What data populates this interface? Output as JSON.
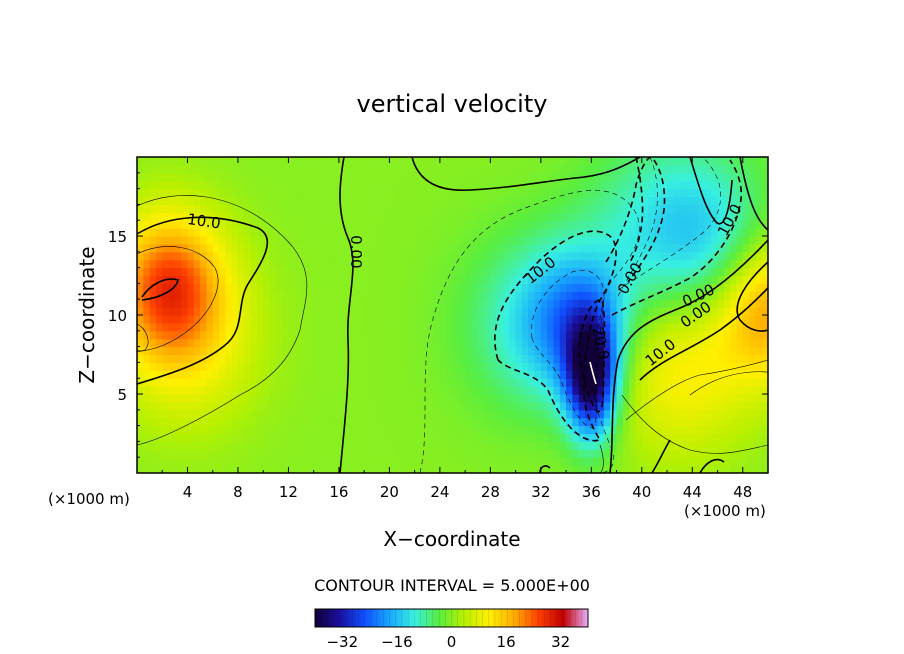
{
  "chart_data": {
    "type": "heatmap",
    "title": "vertical velocity",
    "xlabel": "X−coordinate",
    "ylabel": "Z−coordinate",
    "x_unit_left": "(×1000 m)",
    "x_unit_right": "(×1000 m)",
    "xlim": [
      0,
      50
    ],
    "ylim": [
      0,
      20
    ],
    "x_ticks": [
      4,
      8,
      12,
      16,
      20,
      24,
      28,
      32,
      36,
      40,
      44,
      48
    ],
    "y_ticks": [
      5,
      10,
      15
    ],
    "contour_interval_text": "CONTOUR INTERVAL = 5.000E+00",
    "colorbar": {
      "range": [
        -40,
        40
      ],
      "ticks": [
        -32,
        -16,
        0,
        16,
        32
      ],
      "colors": [
        "#12003a",
        "#1a10a0",
        "#1050ff",
        "#18a8ff",
        "#38f0e0",
        "#58ee40",
        "#b8f000",
        "#fff000",
        "#ffb000",
        "#ff4000",
        "#c00000",
        "#e8b0ff"
      ]
    },
    "contour_labels": [
      {
        "text": "10.0",
        "x": 5.3,
        "z": 15.9,
        "angle": 8
      },
      {
        "text": "0.00",
        "x": 17.3,
        "z": 14.0,
        "angle": 90
      },
      {
        "text": "10.0",
        "x": 32.0,
        "z": 12.8,
        "angle": -38
      },
      {
        "text": "20.0",
        "x": 36.7,
        "z": 8.2,
        "angle": 78
      },
      {
        "text": "0.00",
        "x": 39.1,
        "z": 12.3,
        "angle": -60
      },
      {
        "text": "0.00",
        "x": 44.5,
        "z": 11.2,
        "angle": -25
      },
      {
        "text": "10.0",
        "x": 47.0,
        "z": 16.0,
        "angle": -62
      },
      {
        "text": "0.00",
        "x": 44.3,
        "z": 10.0,
        "angle": -35
      },
      {
        "text": "10.0",
        "x": 41.5,
        "z": 7.6,
        "angle": -38
      }
    ],
    "features": [
      {
        "x": 2.5,
        "z": 12.0,
        "value": 22
      },
      {
        "x": 4.0,
        "z": 8.5,
        "value": 10
      },
      {
        "x": 50.0,
        "z": 10.5,
        "value": 20
      },
      {
        "x": 43.0,
        "z": 7.0,
        "value": 12
      },
      {
        "x": 36.0,
        "z": 6.0,
        "value": -36
      },
      {
        "x": 35.0,
        "z": 9.5,
        "value": -18
      },
      {
        "x": 31.0,
        "z": 9.5,
        "value": -9
      },
      {
        "x": 45.0,
        "z": 14.5,
        "value": -14
      },
      {
        "x": 40.0,
        "z": 16.0,
        "value": -6
      }
    ]
  }
}
